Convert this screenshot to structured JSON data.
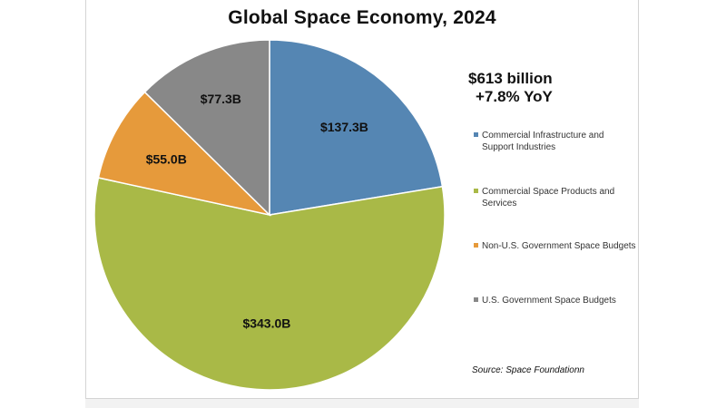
{
  "chart_data": {
    "type": "pie",
    "title": "Global Space Economy, 2024",
    "total_label": "$613 billion",
    "growth_label": "+7.8% YoY",
    "unit": "billion USD",
    "slices": [
      {
        "name": "Commercial Infrastructure and Support Industries",
        "value": 137.3,
        "label": "$137.3B",
        "color": "#5586b3"
      },
      {
        "name": "Commercial Space Products and Services",
        "value": 343.0,
        "label": "$343.0B",
        "color": "#a9b947"
      },
      {
        "name": "Non-U.S. Government Space Budgets",
        "value": 55.0,
        "label": "$55.0B",
        "color": "#e69a3b"
      },
      {
        "name": "U.S. Government Space Budgets",
        "value": 77.3,
        "label": "$77.3B",
        "color": "#888888"
      }
    ],
    "start": "12 o'clock",
    "direction": "clockwise",
    "legend_position": "right",
    "source": "Source: Space Foundationn"
  }
}
